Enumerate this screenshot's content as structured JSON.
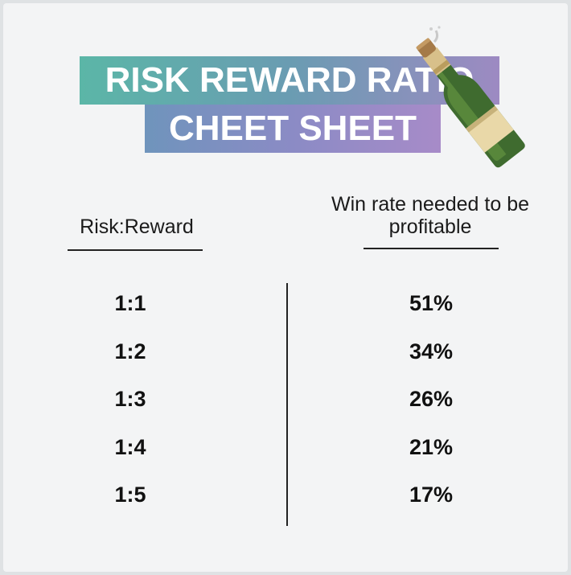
{
  "title": {
    "line1": "RISK REWARD RATIO",
    "line2": "CHEET SHEET"
  },
  "decoration": {
    "icon": "champagne-bottle-icon"
  },
  "table": {
    "headers": {
      "ratio": "Risk:Reward",
      "win_rate": "Win rate needed to be profitable"
    },
    "rows": [
      {
        "ratio": "1:1",
        "win_rate": "51%"
      },
      {
        "ratio": "1:2",
        "win_rate": "34%"
      },
      {
        "ratio": "1:3",
        "win_rate": "26%"
      },
      {
        "ratio": "1:4",
        "win_rate": "21%"
      },
      {
        "ratio": "1:5",
        "win_rate": "17%"
      }
    ]
  }
}
